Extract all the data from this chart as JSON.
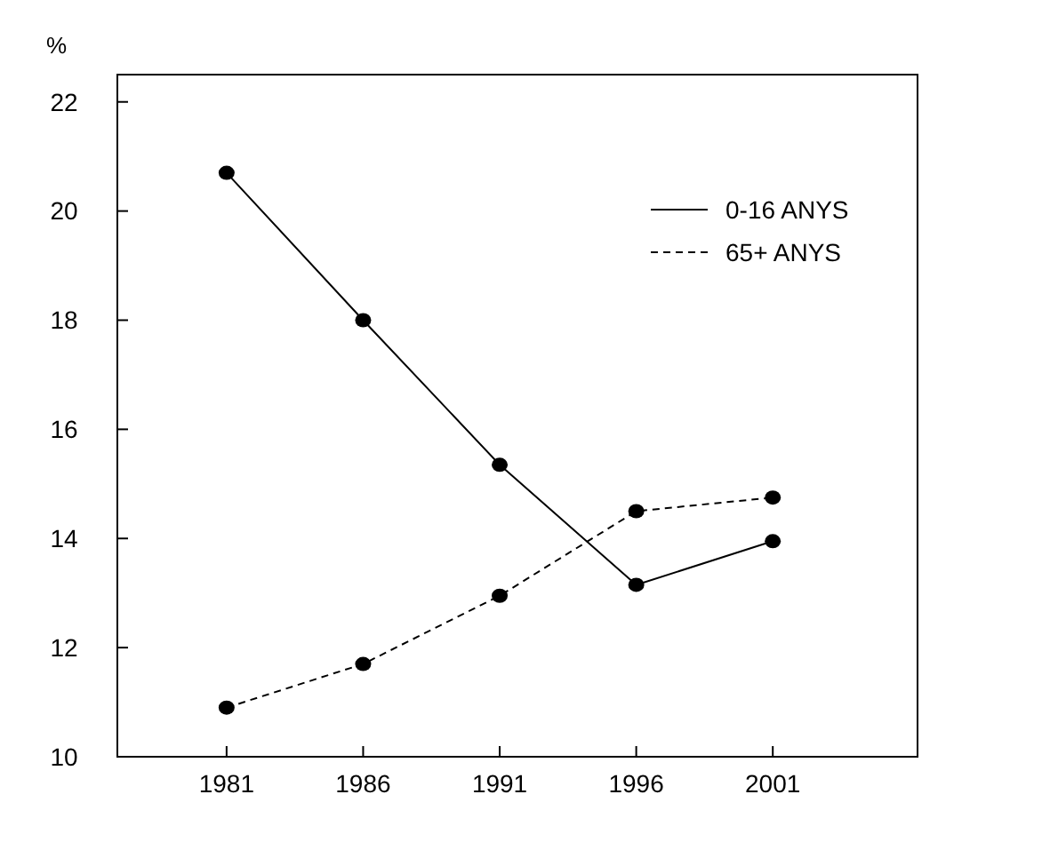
{
  "chart_data": {
    "type": "line",
    "ylabel": "%",
    "x": [
      1981,
      1986,
      1991,
      1996,
      2001
    ],
    "xlim": [
      1977,
      2006.3
    ],
    "xticks": [
      1981,
      1986,
      1991,
      1996,
      2001
    ],
    "ylim": [
      10,
      22.5
    ],
    "yticks": [
      10,
      12,
      14,
      16,
      18,
      20,
      22
    ],
    "marker": "circle",
    "legend": "top right",
    "grid": false,
    "series": [
      {
        "name": "0-16 ANYS",
        "color": "#000000",
        "line_style": "solid",
        "values": [
          20.7,
          18.0,
          15.35,
          13.15,
          13.95
        ]
      },
      {
        "name": "65+ ANYS",
        "color": "#000000",
        "line_style": "dashed",
        "values": [
          10.9,
          11.7,
          12.95,
          14.5,
          14.75
        ]
      }
    ]
  }
}
